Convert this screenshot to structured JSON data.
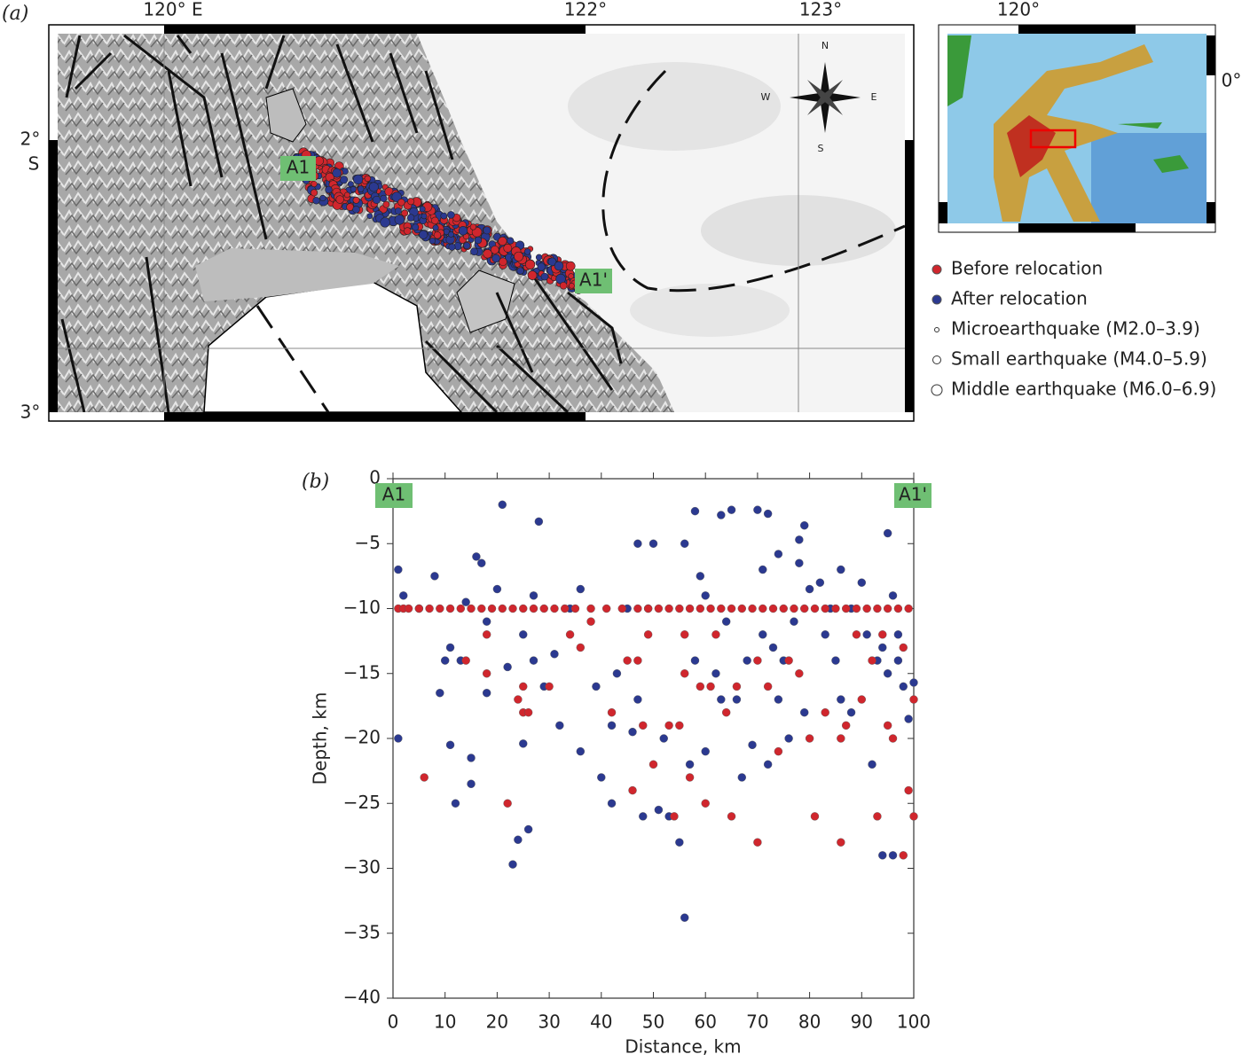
{
  "panel_a": {
    "label": "(a)",
    "lon_labels": [
      "120° E",
      "122°",
      "123°"
    ],
    "lat_labels": [
      "2°",
      "S",
      "3°"
    ],
    "profile_start": "A1",
    "profile_end": "A1'",
    "compass": [
      "N",
      "W",
      "E",
      "S"
    ],
    "inset_lon": "120°",
    "inset_lat": "0°",
    "size_legend": [
      "Microearthquake (M2.0–3.9)",
      "Small earthquake (M4.0–5.9)",
      "Middle earthquake (M6.0–6.9)"
    ]
  },
  "chart_data": {
    "type": "scatter",
    "panel_label": "(b)",
    "annotations": [
      "A1",
      "A1'"
    ],
    "xlabel": "Distance, km",
    "ylabel": "Depth, km",
    "xlim": [
      0,
      100
    ],
    "ylim": [
      -40,
      0
    ],
    "xticks": [
      0,
      10,
      20,
      30,
      40,
      50,
      60,
      70,
      80,
      90,
      100
    ],
    "yticks": [
      0,
      {
        "value": -5,
        "label": "−5"
      },
      {
        "value": -10,
        "label": "−10"
      },
      {
        "value": -15,
        "label": "−15"
      },
      {
        "value": -20,
        "label": "−20"
      },
      {
        "value": -25,
        "label": "−25"
      },
      {
        "value": -30,
        "label": "−30"
      },
      {
        "value": -35,
        "label": "−35"
      },
      {
        "value": -40,
        "label": "−40"
      }
    ],
    "series": [
      {
        "name": "Before relocation",
        "color": "#d0262d",
        "x": [
          1,
          2,
          3,
          5,
          7,
          9,
          11,
          13,
          15,
          17,
          19,
          21,
          23,
          25,
          27,
          29,
          31,
          33,
          35,
          38,
          41,
          44,
          47,
          49,
          51,
          53,
          55,
          57,
          59,
          61,
          63,
          65,
          67,
          69,
          71,
          73,
          75,
          77,
          79,
          81,
          83,
          85,
          87,
          89,
          91,
          93,
          95,
          97,
          99,
          6,
          14,
          18,
          18,
          22,
          24,
          25,
          25,
          26,
          30,
          34,
          36,
          38,
          42,
          45,
          46,
          47,
          48,
          49,
          50,
          53,
          54,
          55,
          56,
          56,
          57,
          59,
          60,
          61,
          62,
          64,
          65,
          66,
          70,
          70,
          72,
          74,
          76,
          78,
          80,
          81,
          83,
          86,
          86,
          87,
          89,
          90,
          92,
          93,
          94,
          95,
          96,
          98,
          98,
          99,
          100,
          100
        ],
        "values": [
          -10,
          -10,
          -10,
          -10,
          -10,
          -10,
          -10,
          -10,
          -10,
          -10,
          -10,
          -10,
          -10,
          -10,
          -10,
          -10,
          -10,
          -10,
          -10,
          -10,
          -10,
          -10,
          -10,
          -10,
          -10,
          -10,
          -10,
          -10,
          -10,
          -10,
          -10,
          -10,
          -10,
          -10,
          -10,
          -10,
          -10,
          -10,
          -10,
          -10,
          -10,
          -10,
          -10,
          -10,
          -10,
          -10,
          -10,
          -10,
          -10,
          -23,
          -14,
          -12,
          -15,
          -25,
          -17,
          -16,
          -18,
          -18,
          -16,
          -12,
          -13,
          -11,
          -18,
          -14,
          -24,
          -14,
          -19,
          -12,
          -22,
          -19,
          -26,
          -19,
          -15,
          -12,
          -23,
          -16,
          -25,
          -16,
          -12,
          -18,
          -26,
          -16,
          -14,
          -28,
          -16,
          -21,
          -14,
          -15,
          -20,
          -26,
          -18,
          -28,
          -20,
          -19,
          -12,
          -17,
          -14,
          -26,
          -12,
          -19,
          -20,
          -13,
          -29,
          -24,
          -26,
          -17
        ]
      },
      {
        "name": "After relocation",
        "color": "#2b3990",
        "x": [
          1,
          1,
          2,
          5,
          8,
          9,
          10,
          11,
          11,
          12,
          13,
          14,
          15,
          15,
          16,
          17,
          18,
          18,
          20,
          21,
          22,
          23,
          24,
          25,
          25,
          26,
          27,
          27,
          28,
          29,
          31,
          32,
          34,
          36,
          36,
          39,
          40,
          42,
          42,
          43,
          45,
          46,
          47,
          47,
          48,
          49,
          50,
          51,
          52,
          53,
          55,
          56,
          56,
          57,
          58,
          58,
          59,
          60,
          60,
          62,
          63,
          63,
          64,
          65,
          66,
          67,
          68,
          69,
          70,
          71,
          71,
          72,
          72,
          73,
          74,
          74,
          75,
          76,
          77,
          78,
          78,
          79,
          79,
          80,
          82,
          83,
          84,
          85,
          86,
          86,
          88,
          88,
          90,
          91,
          92,
          93,
          94,
          94,
          95,
          95,
          96,
          96,
          97,
          97,
          98,
          99,
          100
        ],
        "values": [
          -7,
          -20,
          -9,
          -10,
          -7.5,
          -16.5,
          -14,
          -13,
          -20.5,
          -25,
          -14,
          -9.5,
          -21.5,
          -23.5,
          -6,
          -6.5,
          -11,
          -16.5,
          -8.5,
          -2,
          -14.5,
          -29.7,
          -27.8,
          -12,
          -20.4,
          -27,
          -14,
          -9,
          -3.3,
          -16,
          -13.5,
          -19,
          -10,
          -8.5,
          -21,
          -16,
          -23,
          -19,
          -25,
          -15,
          -10,
          -19.5,
          -17,
          -5,
          -26,
          -10,
          -5,
          -25.5,
          -20,
          -26,
          -28,
          -5,
          -33.8,
          -22,
          -14,
          -2.5,
          -7.5,
          -21,
          -9,
          -15,
          -17,
          -2.8,
          -11,
          -2.4,
          -17,
          -23,
          -14,
          -20.5,
          -2.4,
          -7,
          -12,
          -2.7,
          -22,
          -13,
          -5.8,
          -17,
          -14,
          -20,
          -11,
          -6.5,
          -4.7,
          -3.6,
          -18,
          -8.5,
          -8,
          -12,
          -10,
          -14,
          -17,
          -7,
          -10,
          -18,
          -8,
          -12,
          -22,
          -14,
          -13,
          -29,
          -4.2,
          -15,
          -9,
          -29,
          -12,
          -14,
          -16,
          -18.5,
          -15.7
        ]
      }
    ]
  }
}
